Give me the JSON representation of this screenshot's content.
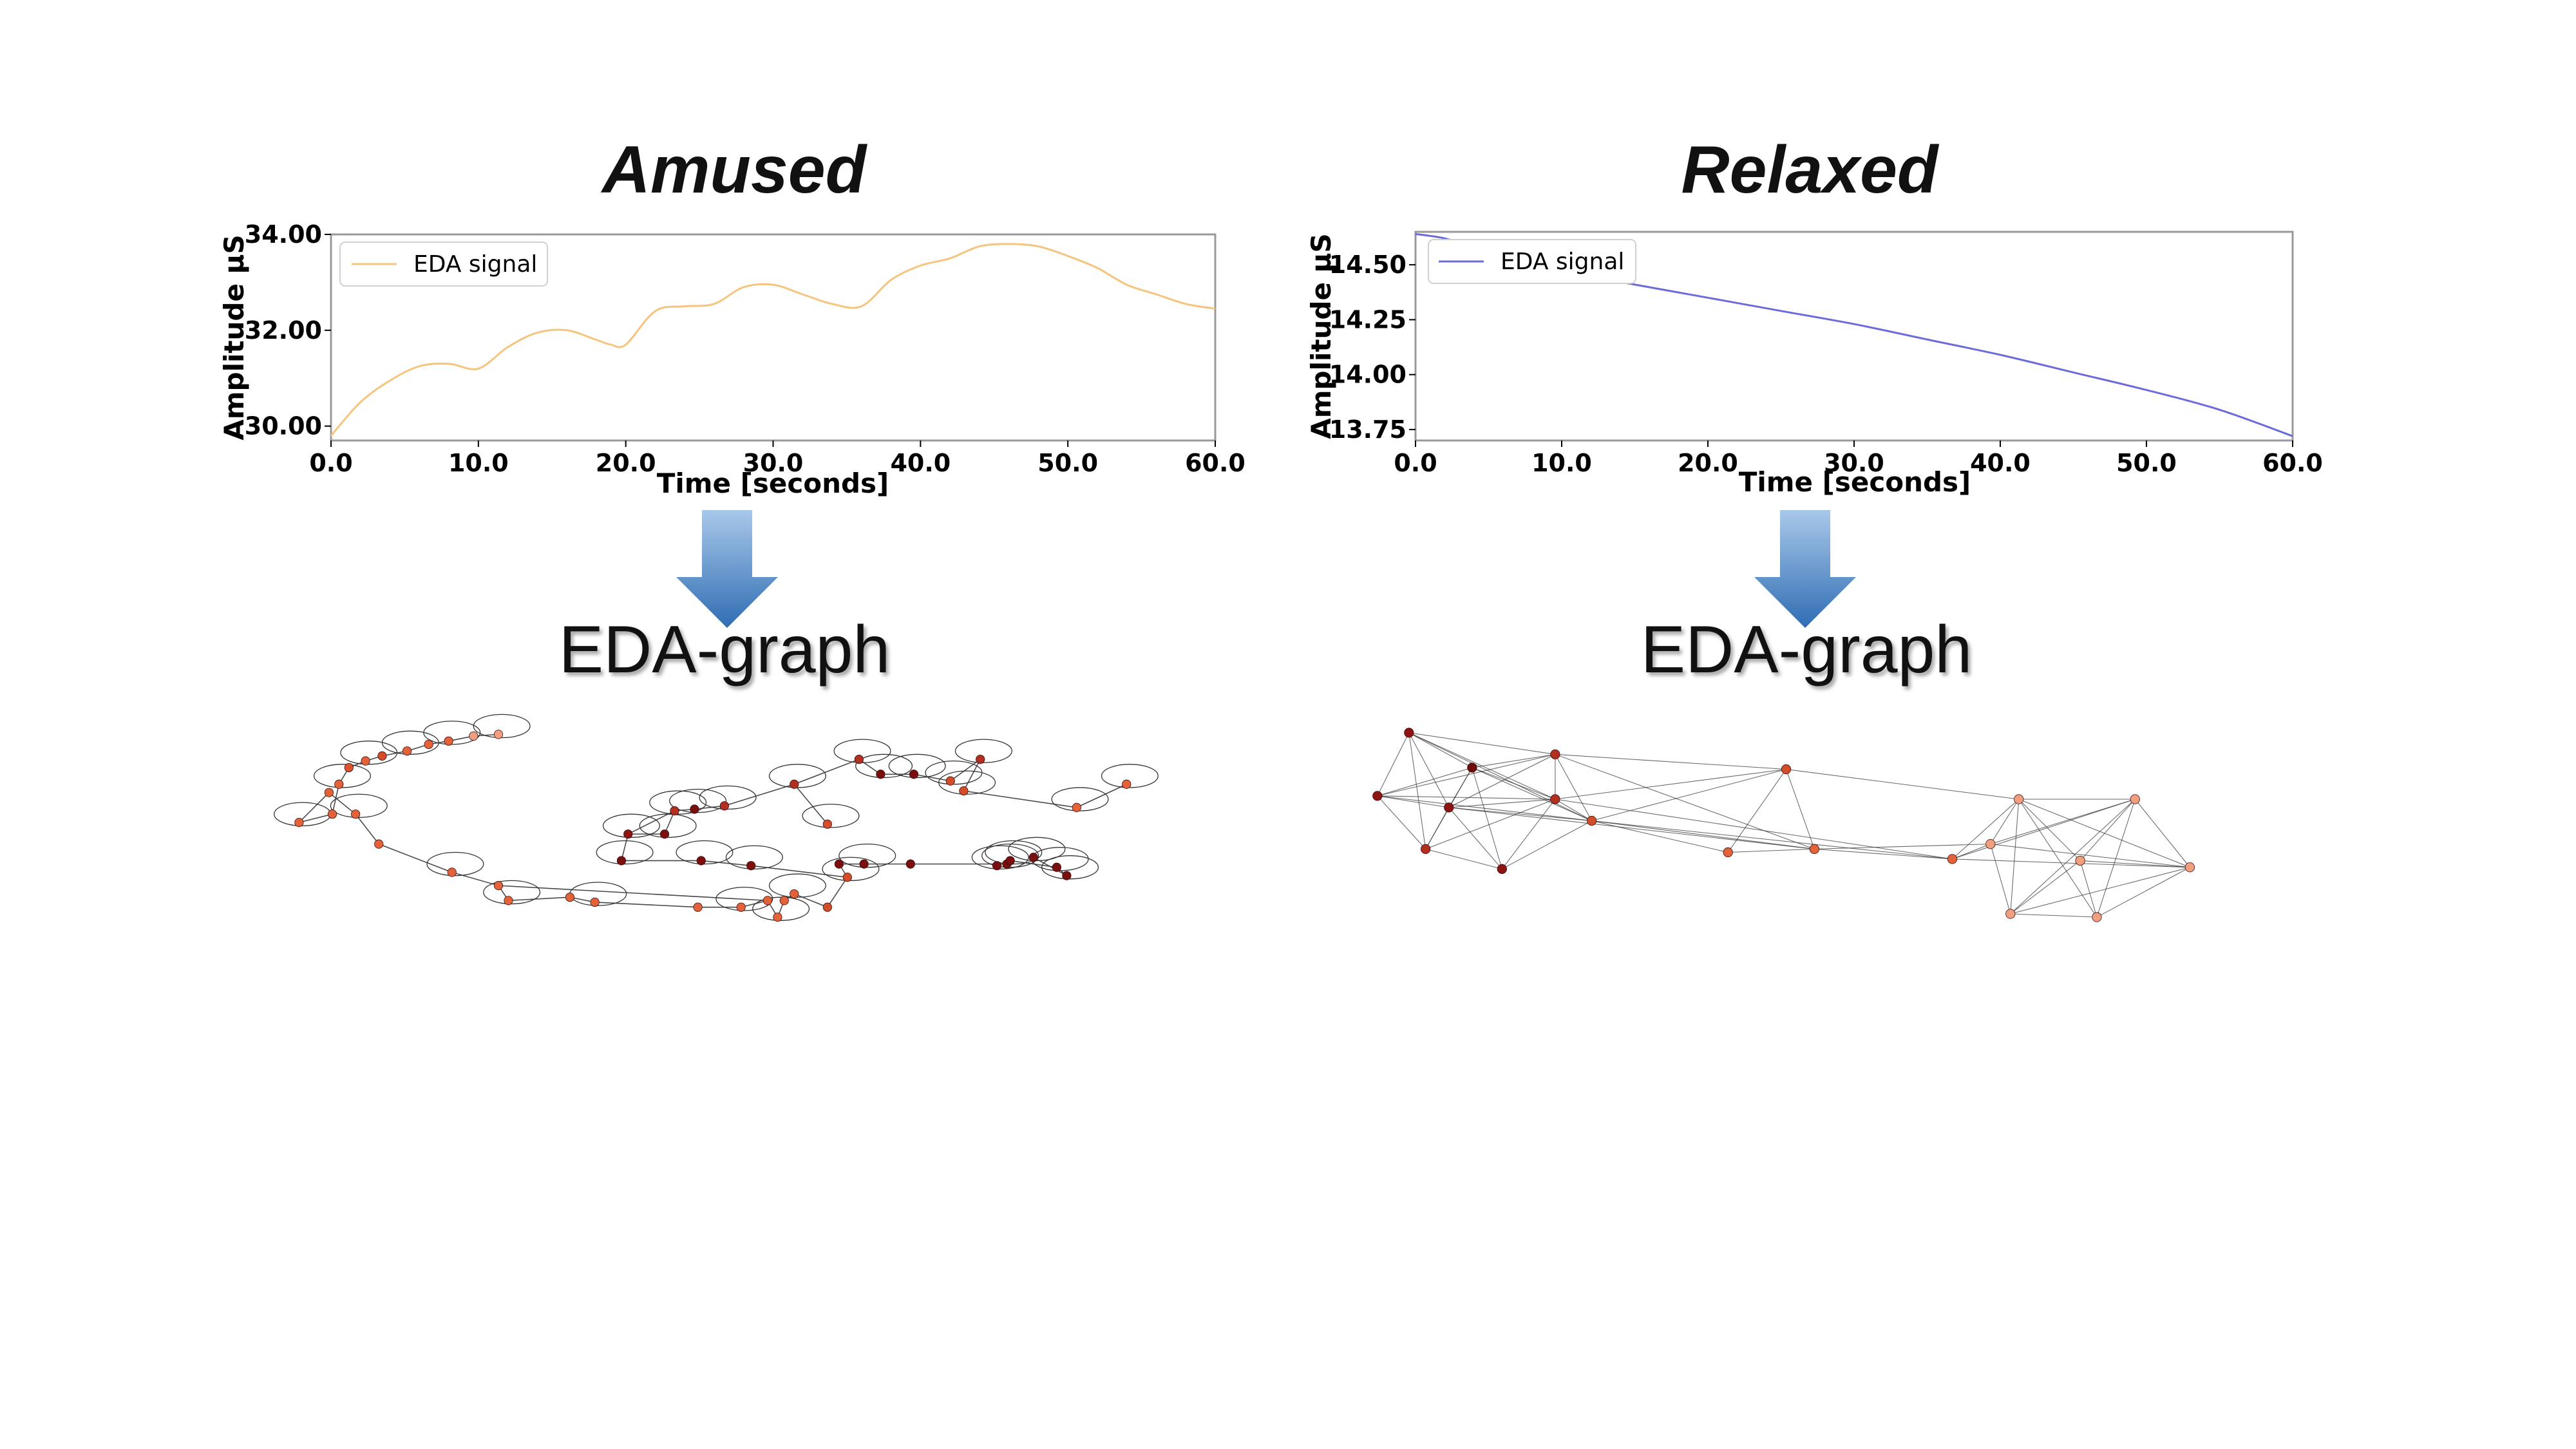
{
  "chart_data": [
    {
      "type": "line",
      "title": "Amused",
      "xlabel": "Time [seconds]",
      "ylabel": "Amplitude µS",
      "xlim": [
        0,
        60
      ],
      "ylim": [
        29.7,
        34.0
      ],
      "xticks": [
        "0.0",
        "10.0",
        "20.0",
        "30.0",
        "40.0",
        "50.0",
        "60.0"
      ],
      "yticks": [
        "30.00",
        "32.00",
        "34.00"
      ],
      "grid": false,
      "legend_position": "top-left",
      "color": "#f5c47e",
      "series": [
        {
          "name": "EDA signal",
          "x": [
            0,
            2,
            4,
            6,
            8,
            10,
            12,
            14,
            16,
            18,
            19,
            20,
            22,
            24,
            26,
            28,
            30,
            32,
            34,
            36,
            38,
            40,
            42,
            44,
            46,
            48,
            50,
            52,
            54,
            56,
            58,
            60
          ],
          "values": [
            29.8,
            30.5,
            30.95,
            31.25,
            31.3,
            31.2,
            31.65,
            31.95,
            32.0,
            31.8,
            31.7,
            31.7,
            32.4,
            32.5,
            32.55,
            32.9,
            32.95,
            32.75,
            32.55,
            32.5,
            33.05,
            33.35,
            33.5,
            33.75,
            33.8,
            33.75,
            33.55,
            33.3,
            32.95,
            32.75,
            32.55,
            32.45
          ]
        }
      ]
    },
    {
      "type": "line",
      "title": "Relaxed",
      "xlabel": "Time [seconds]",
      "ylabel": "Amplitude µS",
      "xlim": [
        0,
        60
      ],
      "ylim": [
        13.7,
        14.65
      ],
      "xticks": [
        "0.0",
        "10.0",
        "20.0",
        "30.0",
        "40.0",
        "50.0",
        "60.0"
      ],
      "yticks": [
        "13.75",
        "14.00",
        "14.25",
        "14.50"
      ],
      "grid": false,
      "legend_position": "top-left",
      "color": "#6b6bdb",
      "series": [
        {
          "name": "EDA signal",
          "x": [
            0,
            2,
            4,
            6,
            10,
            15,
            20,
            25,
            30,
            35,
            40,
            45,
            50,
            55,
            60
          ],
          "values": [
            14.64,
            14.62,
            14.58,
            14.54,
            14.47,
            14.41,
            14.35,
            14.29,
            14.23,
            14.16,
            14.09,
            14.01,
            13.93,
            13.84,
            13.72
          ]
        }
      ]
    }
  ],
  "graph_labels": [
    "EDA-graph",
    "EDA-graph"
  ],
  "graph_nodes": [
    [
      [
        180,
        495
      ],
      [
        200,
        490
      ],
      [
        204,
        472
      ],
      [
        210,
        462
      ],
      [
        220,
        458
      ],
      [
        230,
        455
      ],
      [
        245,
        452
      ],
      [
        258,
        448
      ],
      [
        270,
        446
      ],
      [
        285,
        443
      ],
      [
        300,
        442
      ],
      [
        198,
        477
      ],
      [
        214,
        490
      ],
      [
        228,
        508
      ],
      [
        272,
        525
      ],
      [
        300,
        533
      ],
      [
        306,
        542
      ],
      [
        343,
        540
      ],
      [
        358,
        543
      ],
      [
        420,
        546
      ],
      [
        446,
        546
      ],
      [
        462,
        542
      ],
      [
        468,
        552
      ],
      [
        472,
        542
      ],
      [
        478,
        538
      ],
      [
        498,
        546
      ],
      [
        510,
        528
      ],
      [
        505,
        520
      ],
      [
        520,
        520
      ],
      [
        548,
        520
      ],
      [
        606,
        520
      ],
      [
        374,
        518
      ],
      [
        378,
        502
      ],
      [
        400,
        502
      ],
      [
        406,
        488
      ],
      [
        418,
        487
      ],
      [
        422,
        518
      ],
      [
        436,
        485
      ],
      [
        452,
        521
      ],
      [
        478,
        472
      ],
      [
        498,
        496
      ],
      [
        517,
        457
      ],
      [
        530,
        466
      ],
      [
        550,
        466
      ],
      [
        572,
        470
      ],
      [
        590,
        457
      ],
      [
        580,
        476
      ],
      [
        648,
        486
      ],
      [
        678,
        472
      ],
      [
        600,
        521
      ],
      [
        608,
        518
      ],
      [
        636,
        522
      ],
      [
        642,
        527
      ],
      [
        622,
        516
      ]
    ],
    [
      [
        848,
        441
      ],
      [
        886,
        462
      ],
      [
        936,
        454
      ],
      [
        829,
        479
      ],
      [
        872,
        486
      ],
      [
        858,
        511
      ],
      [
        904,
        523
      ],
      [
        936,
        481
      ],
      [
        958,
        494
      ],
      [
        1075,
        463
      ],
      [
        1040,
        513
      ],
      [
        1092,
        511
      ],
      [
        1175,
        517
      ],
      [
        1198,
        508
      ],
      [
        1215,
        481
      ],
      [
        1285,
        481
      ],
      [
        1318,
        522
      ],
      [
        1210,
        550
      ],
      [
        1262,
        552
      ],
      [
        1252,
        518
      ]
    ]
  ],
  "graph_edges": [
    [
      [
        0,
        1
      ],
      [
        1,
        2
      ],
      [
        2,
        3
      ],
      [
        3,
        4
      ],
      [
        4,
        5
      ],
      [
        5,
        6
      ],
      [
        6,
        7
      ],
      [
        7,
        8
      ],
      [
        8,
        9
      ],
      [
        9,
        10
      ],
      [
        0,
        11
      ],
      [
        11,
        12
      ],
      [
        12,
        13
      ],
      [
        13,
        14
      ],
      [
        14,
        15
      ],
      [
        15,
        16
      ],
      [
        16,
        17
      ],
      [
        17,
        18
      ],
      [
        18,
        19
      ],
      [
        19,
        20
      ],
      [
        20,
        21
      ],
      [
        21,
        22
      ],
      [
        22,
        23
      ],
      [
        23,
        24
      ],
      [
        24,
        25
      ],
      [
        25,
        26
      ],
      [
        26,
        27
      ],
      [
        27,
        28
      ],
      [
        28,
        29
      ],
      [
        29,
        30
      ],
      [
        30,
        50
      ],
      [
        50,
        51
      ],
      [
        51,
        52
      ],
      [
        52,
        53
      ],
      [
        31,
        32
      ],
      [
        32,
        33
      ],
      [
        33,
        34
      ],
      [
        34,
        35
      ],
      [
        35,
        37
      ],
      [
        37,
        39
      ],
      [
        39,
        41
      ],
      [
        41,
        42
      ],
      [
        42,
        43
      ],
      [
        43,
        44
      ],
      [
        44,
        45
      ],
      [
        45,
        46
      ],
      [
        46,
        47
      ],
      [
        47,
        48
      ],
      [
        31,
        36
      ],
      [
        36,
        38
      ],
      [
        38,
        26
      ],
      [
        40,
        39
      ],
      [
        32,
        34
      ],
      [
        15,
        21
      ]
    ],
    [
      [
        0,
        1
      ],
      [
        0,
        2
      ],
      [
        0,
        3
      ],
      [
        0,
        4
      ],
      [
        0,
        7
      ],
      [
        0,
        5
      ],
      [
        1,
        2
      ],
      [
        1,
        3
      ],
      [
        1,
        4
      ],
      [
        1,
        7
      ],
      [
        1,
        5
      ],
      [
        1,
        6
      ],
      [
        2,
        3
      ],
      [
        2,
        4
      ],
      [
        2,
        7
      ],
      [
        2,
        8
      ],
      [
        2,
        9
      ],
      [
        3,
        4
      ],
      [
        3,
        5
      ],
      [
        3,
        7
      ],
      [
        3,
        8
      ],
      [
        4,
        5
      ],
      [
        4,
        6
      ],
      [
        4,
        7
      ],
      [
        4,
        8
      ],
      [
        5,
        6
      ],
      [
        5,
        7
      ],
      [
        6,
        7
      ],
      [
        6,
        8
      ],
      [
        7,
        8
      ],
      [
        7,
        9
      ],
      [
        8,
        9
      ],
      [
        8,
        10
      ],
      [
        8,
        11
      ],
      [
        8,
        12
      ],
      [
        9,
        10
      ],
      [
        9,
        11
      ],
      [
        9,
        14
      ],
      [
        10,
        11
      ],
      [
        11,
        12
      ],
      [
        11,
        13
      ],
      [
        12,
        13
      ],
      [
        12,
        14
      ],
      [
        12,
        15
      ],
      [
        13,
        14
      ],
      [
        13,
        15
      ],
      [
        13,
        16
      ],
      [
        13,
        17
      ],
      [
        14,
        15
      ],
      [
        14,
        16
      ],
      [
        14,
        17
      ],
      [
        14,
        18
      ],
      [
        14,
        19
      ],
      [
        15,
        16
      ],
      [
        15,
        17
      ],
      [
        15,
        18
      ],
      [
        15,
        19
      ],
      [
        16,
        17
      ],
      [
        16,
        18
      ],
      [
        16,
        19
      ],
      [
        17,
        18
      ],
      [
        17,
        19
      ],
      [
        18,
        19
      ],
      [
        12,
        16
      ],
      [
        4,
        11
      ],
      [
        2,
        11
      ],
      [
        7,
        12
      ],
      [
        1,
        8
      ],
      [
        0,
        8
      ]
    ]
  ],
  "node_shades": [
    [
      "#e2633a",
      "#e2633a",
      "#e2633a",
      "#d9532f",
      "#e2633a",
      "#d24d2a",
      "#e2633a",
      "#e2633a",
      "#e2633a",
      "#f0a080",
      "#f0a080",
      "#e2633a",
      "#e2633a",
      "#e2633a",
      "#e2633a",
      "#e2633a",
      "#e2633a",
      "#e2633a",
      "#e2633a",
      "#e2633a",
      "#e2633a",
      "#e2633a",
      "#e2633a",
      "#e2633a",
      "#e2633a",
      "#d24d2a",
      "#d24d2a",
      "#7a0f0f",
      "#7a0f0f",
      "#7a0f0f",
      "#7a0f0f",
      "#7a0f0f",
      "#8e1414",
      "#7a0f0f",
      "#b23020",
      "#7a0f0f",
      "#7a0f0f",
      "#b23020",
      "#7a0f0f",
      "#b23020",
      "#d24d2a",
      "#b23020",
      "#7a0f0f",
      "#7a0f0f",
      "#d24d2a",
      "#b23020",
      "#d24d2a",
      "#e2633a",
      "#e2633a",
      "#7a0f0f",
      "#7a0f0f",
      "#7a0f0f",
      "#7a0f0f",
      "#7a0f0f"
    ],
    [
      "#8e1414",
      "#6e0c0c",
      "#b23020",
      "#8e1414",
      "#8e1414",
      "#b23020",
      "#8e1414",
      "#b23020",
      "#d24d2a",
      "#d24d2a",
      "#e2633a",
      "#e2633a",
      "#e2633a",
      "#f0a080",
      "#f0a080",
      "#f0a080",
      "#f0a080",
      "#f0a080",
      "#f0a080",
      "#f0a080"
    ]
  ]
}
